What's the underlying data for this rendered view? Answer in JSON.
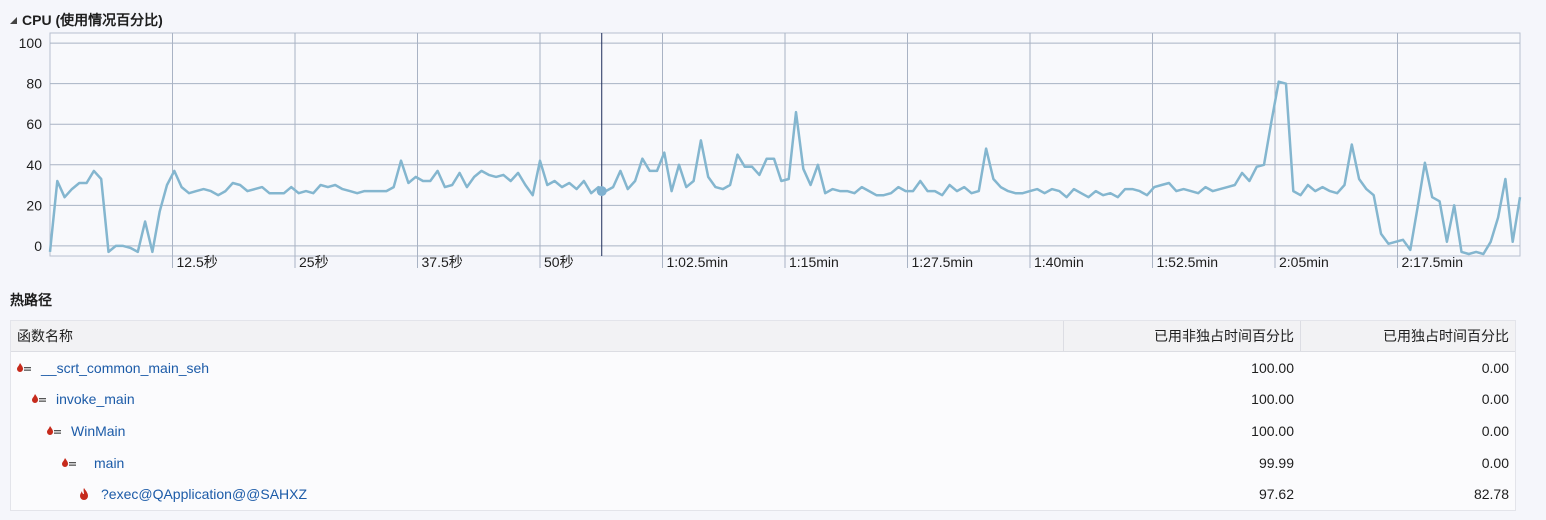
{
  "cpu_section": {
    "title": "CPU (使用情况百分比)"
  },
  "chart_data": {
    "type": "line",
    "title": "CPU (使用情况百分比)",
    "ylim": [
      0,
      100
    ],
    "y_ticks": [
      0,
      20,
      40,
      60,
      80,
      100
    ],
    "x_ticks": [
      "12.5秒",
      "25秒",
      "37.5秒",
      "50秒",
      "1:02.5min",
      "1:15min",
      "1:27.5min",
      "1:40min",
      "1:52.5min",
      "2:05min",
      "2:17.5min"
    ],
    "x_tick_seconds": [
      12.5,
      25,
      37.5,
      50,
      62.5,
      75,
      87.5,
      100,
      112.5,
      125,
      137.5
    ],
    "xlim_seconds": [
      0,
      150
    ],
    "cursor_seconds": 56.3,
    "cursor_value": 27,
    "grid": true,
    "line_color": "#84b6cf",
    "series": [
      {
        "values": [
          -3,
          32,
          24,
          28,
          31,
          31,
          37,
          33,
          -3,
          0,
          0,
          -1,
          -3,
          12,
          -3,
          17,
          30,
          37,
          29,
          26,
          27,
          28,
          27,
          25,
          27,
          31,
          30,
          27,
          28,
          29,
          26,
          26,
          26,
          29,
          26,
          27,
          26,
          30,
          29,
          30,
          28,
          27,
          26,
          27,
          27,
          27,
          27,
          29,
          42,
          31,
          34,
          32,
          32,
          37,
          29,
          30,
          36,
          29,
          34,
          37,
          35,
          34,
          35,
          32,
          36,
          30,
          25,
          42,
          30,
          32,
          29,
          31,
          28,
          32,
          26,
          29,
          27,
          29,
          37,
          28,
          32,
          43,
          37,
          37,
          46,
          27,
          40,
          29,
          32,
          52,
          34,
          29,
          28,
          30,
          45,
          39,
          39,
          35,
          43,
          43,
          32,
          33,
          66,
          38,
          30,
          40,
          26,
          28,
          27,
          27,
          26,
          29,
          27,
          25,
          25,
          26,
          29,
          27,
          27,
          32,
          27,
          27,
          25,
          30,
          27,
          29,
          26,
          27,
          48,
          33,
          29,
          27,
          26,
          26,
          27,
          28,
          26,
          28,
          27,
          24,
          28,
          26,
          24,
          27,
          25,
          26,
          24,
          28,
          28,
          27,
          25,
          29,
          30,
          31,
          27,
          28,
          27,
          26,
          29,
          27,
          28,
          29,
          30,
          36,
          32,
          39,
          40,
          61,
          81,
          80,
          27,
          25,
          30,
          27,
          29,
          27,
          26,
          30,
          50,
          33,
          28,
          25,
          6,
          1,
          2,
          3,
          -2,
          19,
          41,
          24,
          22,
          2,
          20,
          -3,
          -4,
          -3,
          -4,
          2,
          14,
          33,
          2,
          24
        ]
      }
    ]
  },
  "hot_path": {
    "title": "热路径",
    "columns": {
      "name": "函数名称",
      "inclusive": "已用非独占时间百分比",
      "exclusive": "已用独占时间百分比"
    },
    "rows": [
      {
        "name": "__scrt_common_main_seh",
        "inclusive": "100.00",
        "exclusive": "0.00",
        "depth": 0,
        "icon": "hot-path-arrow-icon"
      },
      {
        "name": "invoke_main",
        "inclusive": "100.00",
        "exclusive": "0.00",
        "depth": 1,
        "icon": "hot-path-arrow-icon"
      },
      {
        "name": "WinMain",
        "inclusive": "100.00",
        "exclusive": "0.00",
        "depth": 2,
        "icon": "hot-path-arrow-icon"
      },
      {
        "name": "main",
        "inclusive": "99.99",
        "exclusive": "0.00",
        "depth": 3,
        "icon": "hot-path-arrow-icon"
      },
      {
        "name": "?exec@QApplication@@SAHXZ",
        "inclusive": "97.62",
        "exclusive": "82.78",
        "depth": 4,
        "icon": "flame-icon"
      }
    ]
  },
  "colors": {
    "link": "#1c5ba8",
    "line": "#84b6cf",
    "grid": "#a9b3c4",
    "cursor": "#1e2d5a",
    "hot_icon": "#c62a1c"
  }
}
